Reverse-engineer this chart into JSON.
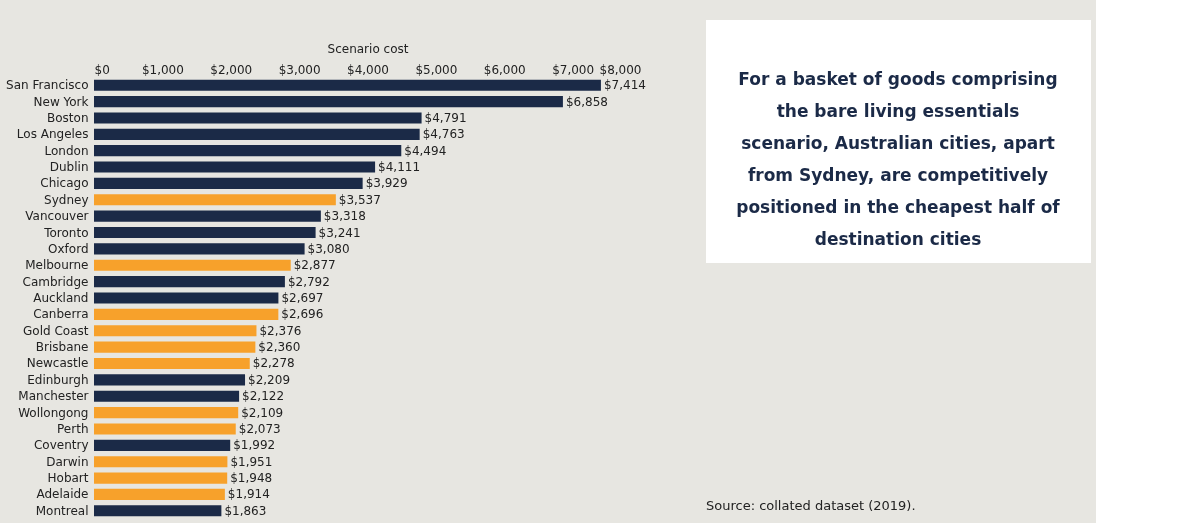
{
  "chart_data": {
    "type": "bar",
    "orientation": "horizontal",
    "xlabel": "Scenario cost",
    "categories": [
      "San Francisco",
      "New York",
      "Boston",
      "Los Angeles",
      "London",
      "Dublin",
      "Chicago",
      "Sydney",
      "Vancouver",
      "Toronto",
      "Oxford",
      "Melbourne",
      "Cambridge",
      "Auckland",
      "Canberra",
      "Gold Coast",
      "Brisbane",
      "Newcastle",
      "Edinburgh",
      "Manchester",
      "Wollongong",
      "Perth",
      "Coventry",
      "Darwin",
      "Hobart",
      "Adelaide",
      "Montreal"
    ],
    "values": [
      7414,
      6858,
      4791,
      4763,
      4494,
      4111,
      3929,
      3537,
      3318,
      3241,
      3080,
      2877,
      2792,
      2697,
      2696,
      2376,
      2360,
      2278,
      2209,
      2122,
      2109,
      2073,
      1992,
      1951,
      1948,
      1914,
      1863
    ],
    "value_labels": [
      "$7,414",
      "$6,858",
      "$4,791",
      "$4,763",
      "$4,494",
      "$4,111",
      "$3,929",
      "$3,537",
      "$3,318",
      "$3,241",
      "$3,080",
      "$2,877",
      "$2,792",
      "$2,697",
      "$2,696",
      "$2,376",
      "$2,360",
      "$2,278",
      "$2,209",
      "$2,122",
      "$2,109",
      "$2,073",
      "$1,992",
      "$1,951",
      "$1,948",
      "$1,914",
      "$1,863"
    ],
    "colors": [
      "#1b2a47",
      "#1b2a47",
      "#1b2a47",
      "#1b2a47",
      "#1b2a47",
      "#1b2a47",
      "#1b2a47",
      "#f7a12b",
      "#1b2a47",
      "#1b2a47",
      "#1b2a47",
      "#f7a12b",
      "#1b2a47",
      "#1b2a47",
      "#f7a12b",
      "#f7a12b",
      "#f7a12b",
      "#f7a12b",
      "#1b2a47",
      "#1b2a47",
      "#f7a12b",
      "#f7a12b",
      "#1b2a47",
      "#f7a12b",
      "#f7a12b",
      "#f7a12b",
      "#1b2a47"
    ],
    "xlim": [
      0,
      8000
    ],
    "xticks": [
      {
        "value": 0,
        "label": "$0"
      },
      {
        "value": 1000,
        "label": "$1,000"
      },
      {
        "value": 2000,
        "label": "$2,000"
      },
      {
        "value": 3000,
        "label": "$3,000"
      },
      {
        "value": 4000,
        "label": "$4,000"
      },
      {
        "value": 5000,
        "label": "$5,000"
      },
      {
        "value": 6000,
        "label": "$6,000"
      },
      {
        "value": 7000,
        "label": "$7,000"
      },
      {
        "value": 8000,
        "label": "$8,000"
      }
    ],
    "grid": false,
    "annotations": [
      "For a basket of goods comprising the bare living essentials scenario, Australian cities, apart from Sydney, are competitively positioned in the cheapest half of destination cities",
      "Source: collated dataset (2019)."
    ]
  }
}
